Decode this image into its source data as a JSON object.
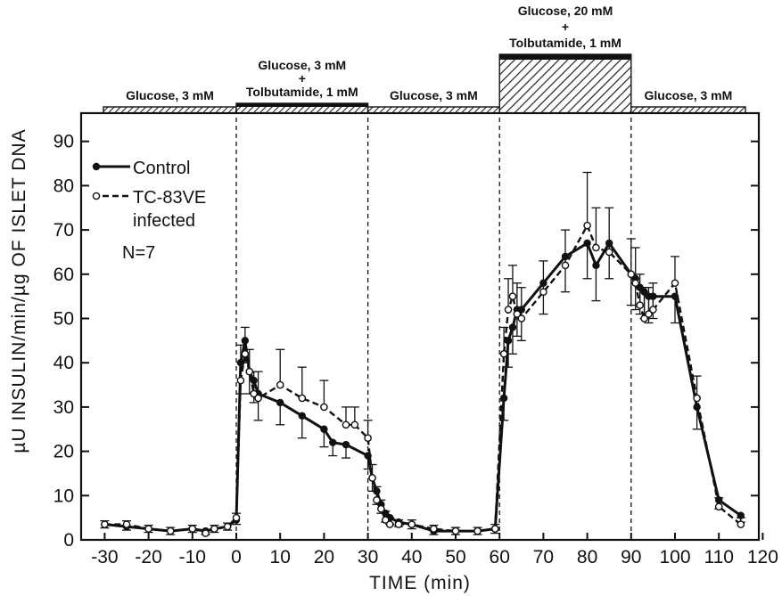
{
  "chart_data": {
    "type": "line",
    "xlabel": "TIME (min)",
    "ylabel": "µU INSULIN/min/µg OF ISLET DNA",
    "xlim": [
      -30,
      120
    ],
    "ylim": [
      0,
      95
    ],
    "x_ticks": [
      -30,
      -20,
      -10,
      0,
      10,
      20,
      30,
      40,
      50,
      60,
      70,
      80,
      90,
      100,
      110,
      120
    ],
    "y_ticks": [
      0,
      10,
      20,
      30,
      40,
      50,
      60,
      70,
      80,
      90
    ],
    "grid": false,
    "legend_position": "top-left",
    "divider_times": [
      0,
      30,
      60,
      90
    ],
    "periods": [
      {
        "start": -30,
        "end": 0,
        "lines": [
          "Glucose, 3 mM"
        ],
        "style": "light"
      },
      {
        "start": 0,
        "end": 30,
        "lines": [
          "Glucose, 3 mM",
          "+",
          "Tolbutamide, 1 mM"
        ],
        "style": "dark"
      },
      {
        "start": 30,
        "end": 60,
        "lines": [
          "Glucose, 3 mM"
        ],
        "style": "light"
      },
      {
        "start": 60,
        "end": 90,
        "lines": [
          "Glucose, 20 mM",
          "+",
          "Tolbutamide, 1 mM"
        ],
        "style": "heavy"
      },
      {
        "start": 90,
        "end": 120,
        "lines": [
          "Glucose, 3 mM"
        ],
        "style": "light"
      }
    ],
    "legend_note": "N=7",
    "series": [
      {
        "name": "Control",
        "style": "solid-filled",
        "x": [
          -30,
          -25,
          -20,
          -15,
          -10,
          -7,
          -5,
          -2,
          0,
          1,
          2,
          3,
          4,
          5,
          10,
          15,
          20,
          22,
          25,
          30,
          31,
          32,
          33,
          34,
          35,
          37,
          40,
          45,
          50,
          55,
          59,
          61,
          62,
          63,
          64,
          65,
          70,
          75,
          80,
          82,
          85,
          90,
          91,
          92,
          93,
          94,
          95,
          100,
          105,
          110,
          115
        ],
        "y": [
          3.5,
          3,
          2.5,
          2,
          2.5,
          2,
          2.5,
          3,
          4.5,
          40,
          45,
          38,
          36,
          33,
          31,
          28,
          25,
          22,
          21.5,
          19,
          14,
          11,
          8,
          6,
          5,
          4,
          3.5,
          2,
          2,
          2,
          2.5,
          32,
          45,
          48,
          52,
          52,
          58,
          64,
          67,
          62,
          67,
          60,
          59,
          57,
          56,
          55,
          55,
          55,
          30,
          9,
          5.5
        ],
        "err": [
          0.8,
          0.8,
          0.8,
          0.8,
          0.8,
          0.8,
          0.8,
          0.8,
          1,
          7,
          5,
          5,
          5,
          6,
          5,
          5,
          4,
          3,
          3,
          3,
          3,
          3,
          2,
          2,
          1.5,
          1,
          1,
          0.8,
          0.8,
          0.8,
          1,
          5,
          6,
          6,
          6,
          7,
          7,
          8,
          8,
          8,
          8,
          7,
          7,
          6,
          6,
          6,
          5,
          6,
          5,
          2,
          1.5
        ]
      },
      {
        "name": "TC-83VE infected",
        "style": "dashed-open",
        "x": [
          -30,
          -25,
          -20,
          -15,
          -10,
          -7,
          -5,
          -2,
          0,
          1,
          2,
          3,
          4,
          5,
          10,
          15,
          20,
          25,
          27,
          30,
          31,
          32,
          33,
          34,
          35,
          37,
          40,
          45,
          50,
          55,
          59,
          61,
          62,
          63,
          64,
          65,
          70,
          75,
          80,
          82,
          85,
          90,
          91,
          92,
          93,
          94,
          95,
          100,
          105,
          110,
          115
        ],
        "y": [
          3.5,
          3.5,
          2.5,
          2,
          2.5,
          1.5,
          2.5,
          3,
          5,
          36,
          42,
          38,
          33,
          32,
          35,
          32,
          30,
          26,
          26,
          23,
          14,
          9,
          7,
          4.5,
          3.5,
          3.5,
          3.5,
          2.5,
          2,
          2,
          2.5,
          42,
          52,
          55,
          51,
          50,
          56,
          62,
          71,
          66,
          65,
          60,
          58,
          53,
          50,
          51,
          52,
          58,
          32,
          7.5,
          3.5
        ],
        "err": [
          0.8,
          0.8,
          0.8,
          0.8,
          0.8,
          0.8,
          0.8,
          0.8,
          1,
          8,
          6,
          5,
          5,
          6,
          8,
          7,
          6,
          4,
          4,
          4,
          3,
          3,
          2,
          2,
          1.5,
          1,
          1,
          0.8,
          0.8,
          0.8,
          1,
          6,
          7,
          7,
          7,
          7,
          7,
          8,
          12,
          9,
          10,
          8,
          8,
          7,
          7,
          6,
          6,
          6,
          5,
          2,
          1.5
        ]
      }
    ]
  }
}
